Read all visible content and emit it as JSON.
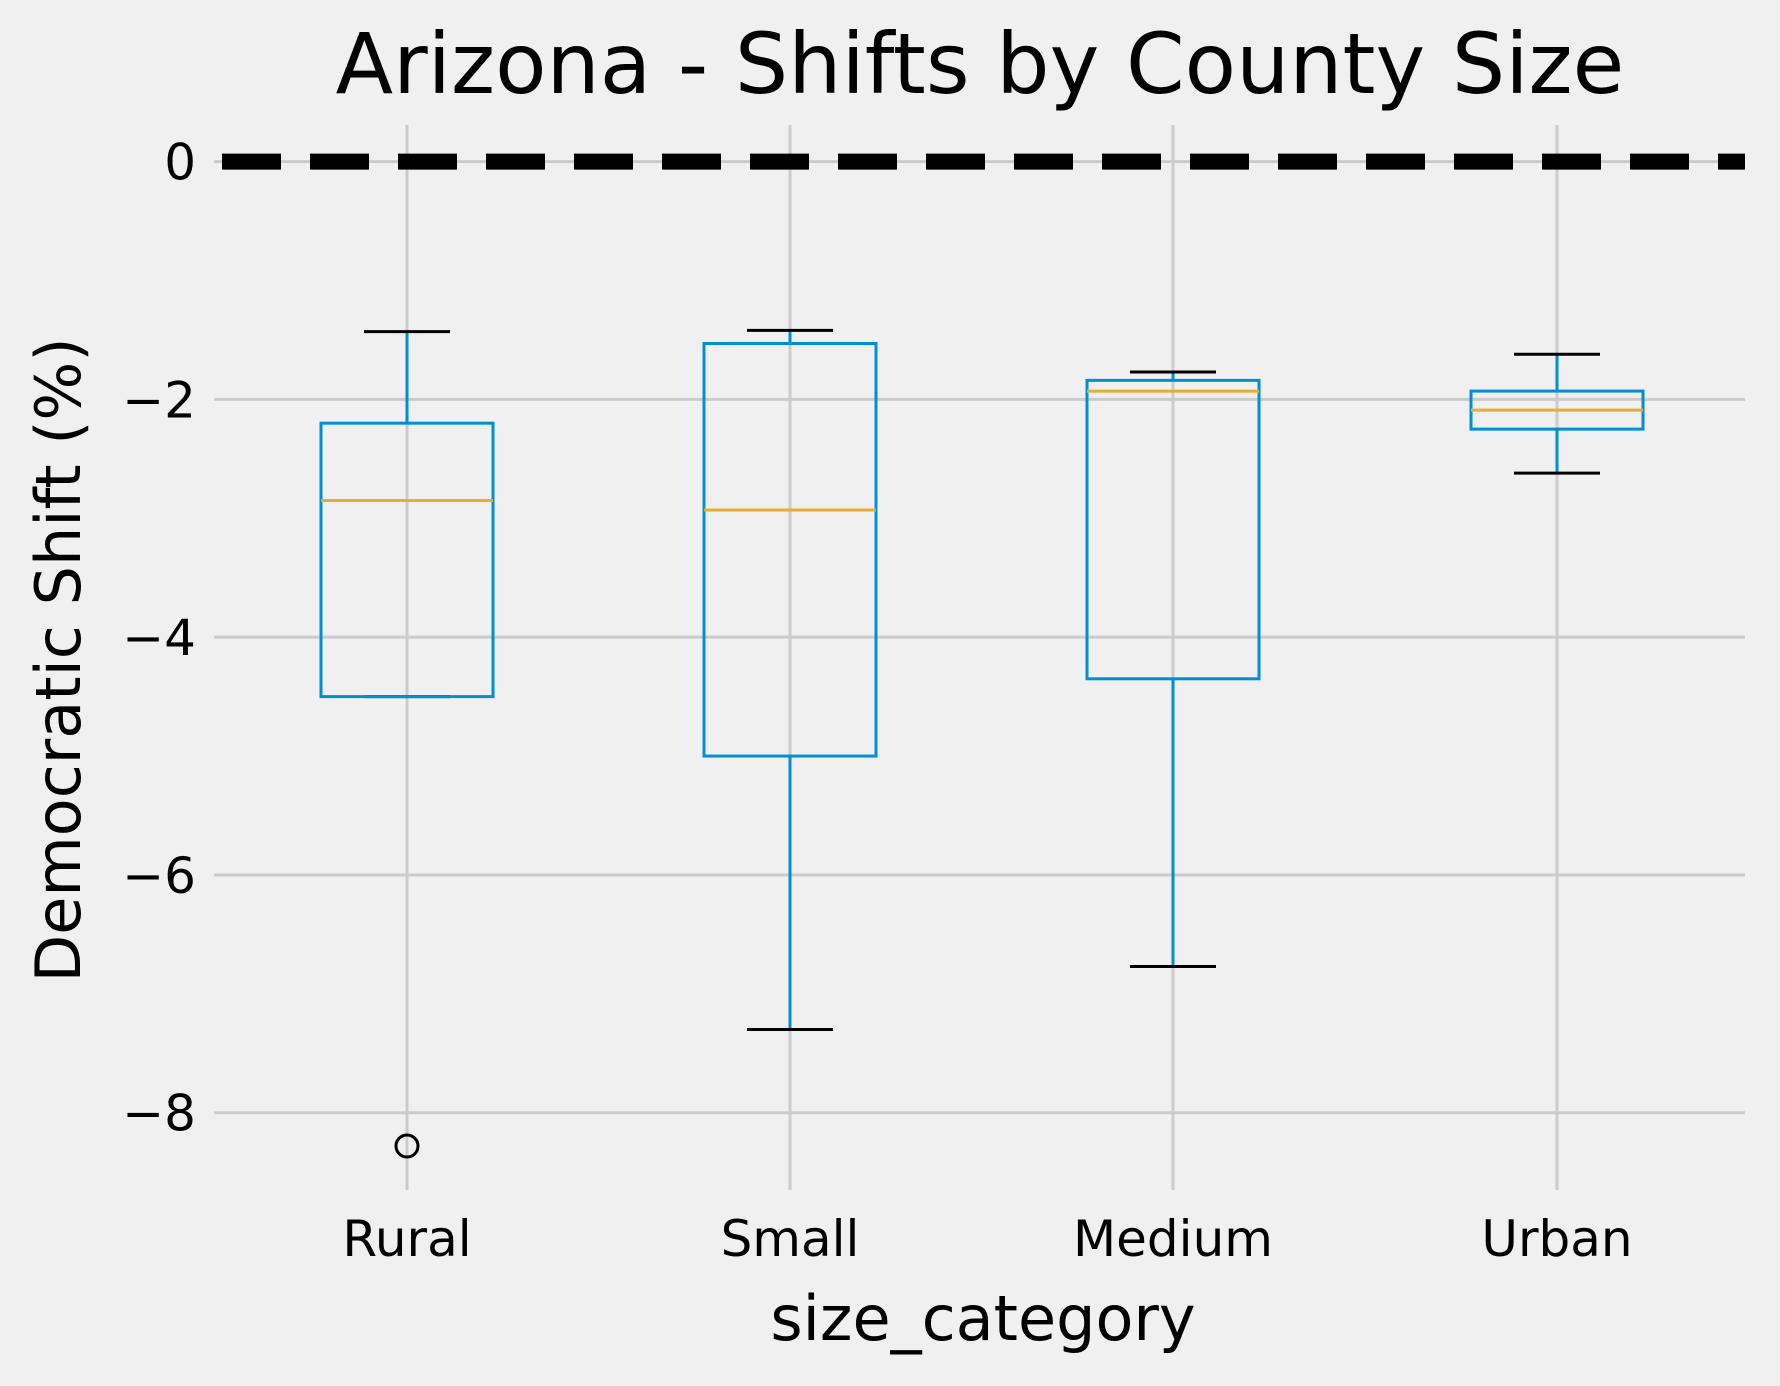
{
  "chart_data": {
    "type": "box",
    "title": "Arizona - Shifts by County Size",
    "xlabel": "size_category",
    "ylabel": "Democratic Shift (%)",
    "ylim": [
      -8.65,
      0.35
    ],
    "yticks": [
      0,
      -2,
      -4,
      -6,
      -8
    ],
    "ytick_labels": [
      "0",
      "−2",
      "−4",
      "−6",
      "−8"
    ],
    "grid": true,
    "reference_line": {
      "y": 0,
      "style": "dashed",
      "color": "#000000"
    },
    "categories": [
      "Rural",
      "Small",
      "Medium",
      "Urban"
    ],
    "boxes": [
      {
        "category": "Rural",
        "whisker_low": -4.5,
        "q1": -4.5,
        "median": -2.85,
        "q3": -2.2,
        "whisker_high": -1.43,
        "outliers": [
          -8.28
        ]
      },
      {
        "category": "Small",
        "whisker_low": -7.3,
        "q1": -5.0,
        "median": -2.93,
        "q3": -1.53,
        "whisker_high": -1.42,
        "outliers": []
      },
      {
        "category": "Medium",
        "whisker_low": -6.77,
        "q1": -4.35,
        "median": -1.93,
        "q3": -1.84,
        "whisker_high": -1.77,
        "outliers": []
      },
      {
        "category": "Urban",
        "whisker_low": -2.62,
        "q1": -2.25,
        "median": -2.09,
        "q3": -1.93,
        "whisker_high": -1.62,
        "outliers": []
      }
    ],
    "colors": {
      "box": "#008fd5",
      "median": "#e5ae38",
      "whisker_cap": "#000000",
      "grid": "#cbcbcb",
      "background": "#f0f0f0"
    }
  }
}
